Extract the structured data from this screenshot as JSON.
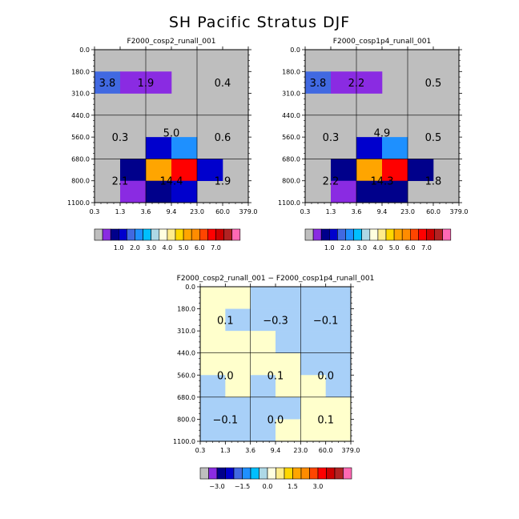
{
  "page": {
    "title": "SH Pacific Stratus DJF"
  },
  "colors": {
    "background": "#bebebe",
    "abs_colorbar": [
      "#bebebe",
      "#8a2be2",
      "#00008b",
      "#0000cd",
      "#4169e1",
      "#1e90ff",
      "#00bfff",
      "#add8e6",
      "#ffffe0",
      "#ffec8b",
      "#ffd700",
      "#ffa500",
      "#ff8c00",
      "#ff4500",
      "#ff0000",
      "#cd0000",
      "#b22222",
      "#ff69b4"
    ],
    "diff_colorbar": [
      "#bebebe",
      "#8a2be2",
      "#00008b",
      "#0000cd",
      "#4169e1",
      "#1e90ff",
      "#00bfff",
      "#add8e6",
      "#ffffe0",
      "#ffec8b",
      "#ffd700",
      "#ffa500",
      "#ff8c00",
      "#ff4500",
      "#ff0000",
      "#cd0000",
      "#b22222",
      "#ff69b4"
    ]
  },
  "chart_data": [
    {
      "type": "heatmap",
      "title": "F2000_cosp2_runall_001",
      "x_ticks": [
        "0.3",
        "1.3",
        "3.6",
        "9.4",
        "23.0",
        "60.0",
        "379.0"
      ],
      "y_ticks": [
        "0.0",
        "180.0",
        "310.0",
        "440.0",
        "560.0",
        "680.0",
        "800.0",
        "1100.0"
      ],
      "cells": [
        {
          "col": 0,
          "row": 1,
          "color": "#4169e1"
        },
        {
          "col": 1,
          "row": 1,
          "color": "#8a2be2"
        },
        {
          "col": 2,
          "row": 1,
          "color": "#8a2be2"
        },
        {
          "col": 2,
          "row": 4,
          "color": "#0000cd"
        },
        {
          "col": 3,
          "row": 4,
          "color": "#1e90ff"
        },
        {
          "col": 1,
          "row": 5,
          "color": "#00008b"
        },
        {
          "col": 2,
          "row": 5,
          "color": "#ffa500"
        },
        {
          "col": 3,
          "row": 5,
          "color": "#ff0000"
        },
        {
          "col": 4,
          "row": 5,
          "color": "#0000cd"
        },
        {
          "col": 1,
          "row": 6,
          "color": "#8a2be2"
        },
        {
          "col": 2,
          "row": 6,
          "color": "#00008b"
        },
        {
          "col": 3,
          "row": 6,
          "color": "#0000cd"
        }
      ],
      "labels": [
        {
          "col": 0.5,
          "row": 1.5,
          "text": "3.8"
        },
        {
          "col": 2,
          "row": 1.5,
          "text": "1.9"
        },
        {
          "col": 5,
          "row": 1.5,
          "text": "0.4"
        },
        {
          "col": 1,
          "row": 4,
          "text": "0.3"
        },
        {
          "col": 3,
          "row": 3.8,
          "text": "5.0"
        },
        {
          "col": 5,
          "row": 4,
          "text": "0.6"
        },
        {
          "col": 1,
          "row": 6,
          "text": "2.1"
        },
        {
          "col": 3,
          "row": 6,
          "text": "14.4"
        },
        {
          "col": 5,
          "row": 6,
          "text": "1.9"
        }
      ],
      "colorbar_labels": [
        "1.0",
        "2.0",
        "3.0",
        "4.0",
        "5.0",
        "6.0",
        "7.0"
      ]
    },
    {
      "type": "heatmap",
      "title": "F2000_cosp1p4_runall_001",
      "x_ticks": [
        "0.3",
        "1.3",
        "3.6",
        "9.4",
        "23.0",
        "60.0",
        "379.0"
      ],
      "y_ticks": [
        "0.0",
        "180.0",
        "310.0",
        "440.0",
        "560.0",
        "680.0",
        "800.0",
        "1100.0"
      ],
      "cells": [
        {
          "col": 0,
          "row": 1,
          "color": "#4169e1"
        },
        {
          "col": 1,
          "row": 1,
          "color": "#8a2be2"
        },
        {
          "col": 2,
          "row": 1,
          "color": "#8a2be2"
        },
        {
          "col": 2,
          "row": 4,
          "color": "#0000cd"
        },
        {
          "col": 3,
          "row": 4,
          "color": "#1e90ff"
        },
        {
          "col": 1,
          "row": 5,
          "color": "#00008b"
        },
        {
          "col": 2,
          "row": 5,
          "color": "#ffa500"
        },
        {
          "col": 3,
          "row": 5,
          "color": "#ff0000"
        },
        {
          "col": 4,
          "row": 5,
          "color": "#00008b"
        },
        {
          "col": 1,
          "row": 6,
          "color": "#8a2be2"
        },
        {
          "col": 2,
          "row": 6,
          "color": "#00008b"
        },
        {
          "col": 3,
          "row": 6,
          "color": "#00008b"
        }
      ],
      "labels": [
        {
          "col": 0.5,
          "row": 1.5,
          "text": "3.8"
        },
        {
          "col": 2,
          "row": 1.5,
          "text": "2.2"
        },
        {
          "col": 5,
          "row": 1.5,
          "text": "0.5"
        },
        {
          "col": 1,
          "row": 4,
          "text": "0.3"
        },
        {
          "col": 3,
          "row": 3.8,
          "text": "4.9"
        },
        {
          "col": 5,
          "row": 4,
          "text": "0.5"
        },
        {
          "col": 1,
          "row": 6,
          "text": "2.2"
        },
        {
          "col": 3,
          "row": 6,
          "text": "14.3"
        },
        {
          "col": 5,
          "row": 6,
          "text": "1.8"
        }
      ],
      "colorbar_labels": [
        "1.0",
        "2.0",
        "3.0",
        "4.0",
        "5.0",
        "6.0",
        "7.0"
      ]
    },
    {
      "type": "heatmap",
      "title": "F2000_cosp2_runall_001 − F2000_cosp1p4_runall_001",
      "x_ticks": [
        "0.3",
        "1.3",
        "3.6",
        "9.4",
        "23.0",
        "60.0",
        "379.0"
      ],
      "y_ticks": [
        "0.0",
        "180.0",
        "310.0",
        "440.0",
        "560.0",
        "680.0",
        "800.0",
        "1100.0"
      ],
      "cells": [
        {
          "col": 0,
          "row": 0,
          "color": "#ffffcc"
        },
        {
          "col": 1,
          "row": 0,
          "color": "#ffffcc"
        },
        {
          "col": 2,
          "row": 0,
          "color": "#a8d0f8"
        },
        {
          "col": 3,
          "row": 0,
          "color": "#a8d0f8"
        },
        {
          "col": 4,
          "row": 0,
          "color": "#a8d0f8"
        },
        {
          "col": 5,
          "row": 0,
          "color": "#a8d0f8"
        },
        {
          "col": 0,
          "row": 1,
          "color": "#ffffcc"
        },
        {
          "col": 1,
          "row": 1,
          "color": "#a8d0f8"
        },
        {
          "col": 2,
          "row": 1,
          "color": "#a8d0f8"
        },
        {
          "col": 3,
          "row": 1,
          "color": "#a8d0f8"
        },
        {
          "col": 4,
          "row": 1,
          "color": "#a8d0f8"
        },
        {
          "col": 5,
          "row": 1,
          "color": "#a8d0f8"
        },
        {
          "col": 0,
          "row": 2,
          "color": "#ffffcc"
        },
        {
          "col": 1,
          "row": 2,
          "color": "#ffffcc"
        },
        {
          "col": 2,
          "row": 2,
          "color": "#ffffcc"
        },
        {
          "col": 3,
          "row": 2,
          "color": "#a8d0f8"
        },
        {
          "col": 4,
          "row": 2,
          "color": "#a8d0f8"
        },
        {
          "col": 5,
          "row": 2,
          "color": "#a8d0f8"
        },
        {
          "col": 0,
          "row": 3,
          "color": "#ffffcc"
        },
        {
          "col": 1,
          "row": 3,
          "color": "#ffffcc"
        },
        {
          "col": 2,
          "row": 3,
          "color": "#ffffcc"
        },
        {
          "col": 3,
          "row": 3,
          "color": "#ffffcc"
        },
        {
          "col": 4,
          "row": 3,
          "color": "#a8d0f8"
        },
        {
          "col": 5,
          "row": 3,
          "color": "#a8d0f8"
        },
        {
          "col": 0,
          "row": 4,
          "color": "#a8d0f8"
        },
        {
          "col": 1,
          "row": 4,
          "color": "#ffffcc"
        },
        {
          "col": 2,
          "row": 4,
          "color": "#a8d0f8"
        },
        {
          "col": 3,
          "row": 4,
          "color": "#ffffcc"
        },
        {
          "col": 4,
          "row": 4,
          "color": "#ffffcc"
        },
        {
          "col": 5,
          "row": 4,
          "color": "#a8d0f8"
        },
        {
          "col": 0,
          "row": 5,
          "color": "#a8d0f8"
        },
        {
          "col": 1,
          "row": 5,
          "color": "#a8d0f8"
        },
        {
          "col": 2,
          "row": 5,
          "color": "#a8d0f8"
        },
        {
          "col": 3,
          "row": 5,
          "color": "#a8d0f8"
        },
        {
          "col": 4,
          "row": 5,
          "color": "#ffffcc"
        },
        {
          "col": 5,
          "row": 5,
          "color": "#ffffcc"
        },
        {
          "col": 0,
          "row": 6,
          "color": "#a8d0f8"
        },
        {
          "col": 1,
          "row": 6,
          "color": "#a8d0f8"
        },
        {
          "col": 2,
          "row": 6,
          "color": "#a8d0f8"
        },
        {
          "col": 3,
          "row": 6,
          "color": "#ffffcc"
        },
        {
          "col": 4,
          "row": 6,
          "color": "#ffffcc"
        },
        {
          "col": 5,
          "row": 6,
          "color": "#ffffcc"
        }
      ],
      "labels": [
        {
          "col": 1,
          "row": 1.5,
          "text": "0.1"
        },
        {
          "col": 3,
          "row": 1.5,
          "text": "−0.3"
        },
        {
          "col": 5,
          "row": 1.5,
          "text": "−0.1"
        },
        {
          "col": 1,
          "row": 4,
          "text": "0.0"
        },
        {
          "col": 3,
          "row": 4,
          "text": "0.1"
        },
        {
          "col": 5,
          "row": 4,
          "text": "0.0"
        },
        {
          "col": 1,
          "row": 6,
          "text": "−0.1"
        },
        {
          "col": 3,
          "row": 6,
          "text": "0.0"
        },
        {
          "col": 5,
          "row": 6,
          "text": "0.1"
        }
      ],
      "colorbar_labels": [
        "−3.0",
        "−1.5",
        "0.0",
        "1.5",
        "3.0"
      ]
    }
  ]
}
